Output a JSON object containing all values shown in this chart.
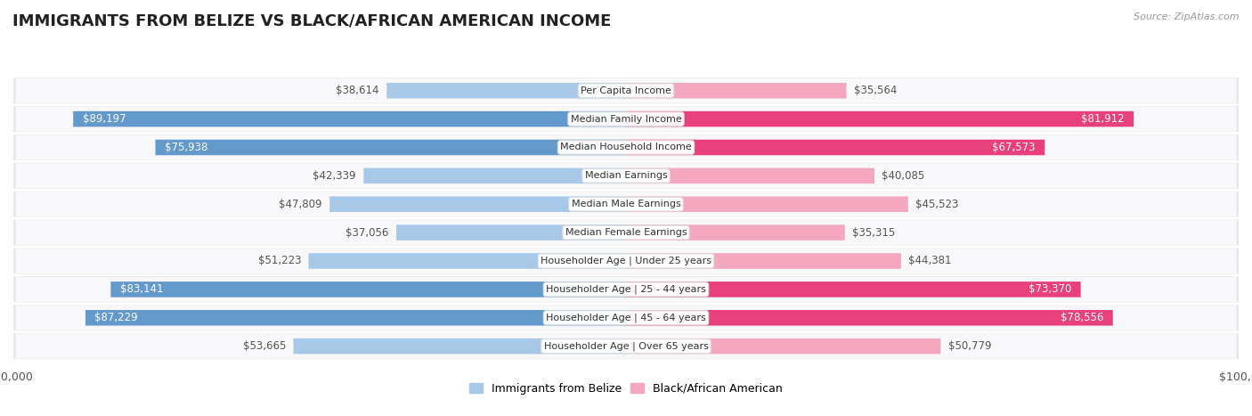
{
  "title": "IMMIGRANTS FROM BELIZE VS BLACK/AFRICAN AMERICAN INCOME",
  "source": "Source: ZipAtlas.com",
  "categories": [
    "Per Capita Income",
    "Median Family Income",
    "Median Household Income",
    "Median Earnings",
    "Median Male Earnings",
    "Median Female Earnings",
    "Householder Age | Under 25 years",
    "Householder Age | 25 - 44 years",
    "Householder Age | 45 - 64 years",
    "Householder Age | Over 65 years"
  ],
  "belize_values": [
    38614,
    89197,
    75938,
    42339,
    47809,
    37056,
    51223,
    83141,
    87229,
    53665
  ],
  "black_values": [
    35564,
    81912,
    67573,
    40085,
    45523,
    35315,
    44381,
    73370,
    78556,
    50779
  ],
  "belize_labels": [
    "$38,614",
    "$89,197",
    "$75,938",
    "$42,339",
    "$47,809",
    "$37,056",
    "$51,223",
    "$83,141",
    "$87,229",
    "$53,665"
  ],
  "black_labels": [
    "$35,564",
    "$81,912",
    "$67,573",
    "$40,085",
    "$45,523",
    "$35,315",
    "$44,381",
    "$73,370",
    "$78,556",
    "$50,779"
  ],
  "max_value": 100000,
  "belize_color_light": "#a8c8e8",
  "belize_color_dark": "#6499cc",
  "black_color_light": "#f4a8c0",
  "black_color_dark": "#e8407a",
  "threshold": 60000,
  "row_bg_color": "#e8e8ec",
  "row_bg_inner": "#f8f8fa",
  "title_fontsize": 13,
  "source_fontsize": 8,
  "label_fontsize": 8.5,
  "cat_fontsize": 8,
  "legend_belize": "Immigrants from Belize",
  "legend_black": "Black/African American"
}
